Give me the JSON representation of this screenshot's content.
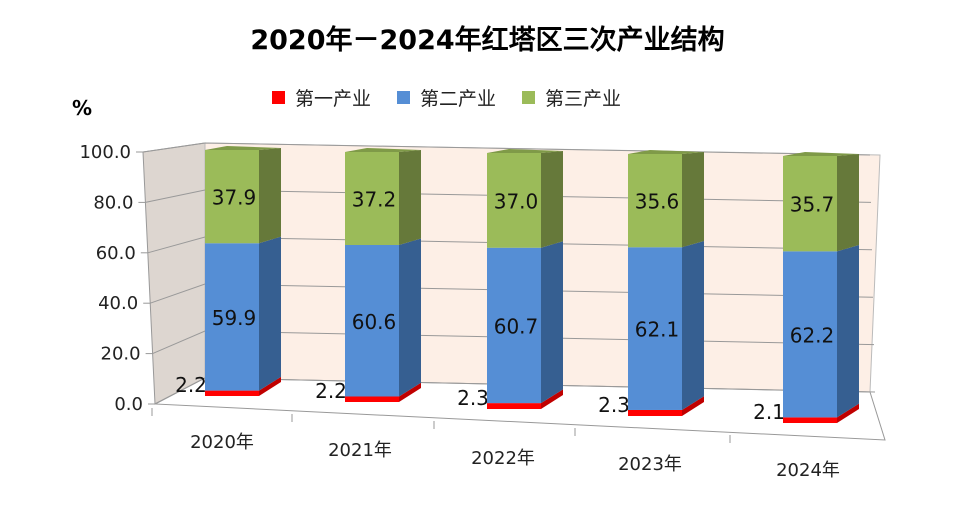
{
  "chart_data": {
    "type": "bar",
    "stacked": true,
    "three_d": true,
    "title": "2020年－2024年红塔区三次产业结构",
    "ylabel": "%",
    "ylim": [
      0,
      100
    ],
    "yticks": [
      "0.0",
      "20.0",
      "40.0",
      "60.0",
      "80.0",
      "100.0"
    ],
    "grid": true,
    "legend": "top",
    "categories": [
      "2020年",
      "2021年",
      "2022年",
      "2023年",
      "2024年"
    ],
    "series": [
      {
        "name": "第一产业",
        "color": "#FF0000",
        "values": [
          2.2,
          2.2,
          2.3,
          2.3,
          2.1
        ],
        "labels": [
          "2.2",
          "2.2",
          "2.3",
          "2.3",
          "2.1"
        ]
      },
      {
        "name": "第二产业",
        "color": "#558ED5",
        "values": [
          59.9,
          60.6,
          60.7,
          62.1,
          62.2
        ],
        "labels": [
          "59.9",
          "60.6",
          "60.7",
          "62.1",
          "62.2"
        ]
      },
      {
        "name": "第三产业",
        "color": "#9BBB59",
        "values": [
          37.9,
          37.2,
          37.0,
          35.6,
          35.7
        ],
        "labels": [
          "37.9",
          "37.2",
          "37.0",
          "35.6",
          "35.7"
        ]
      }
    ]
  }
}
